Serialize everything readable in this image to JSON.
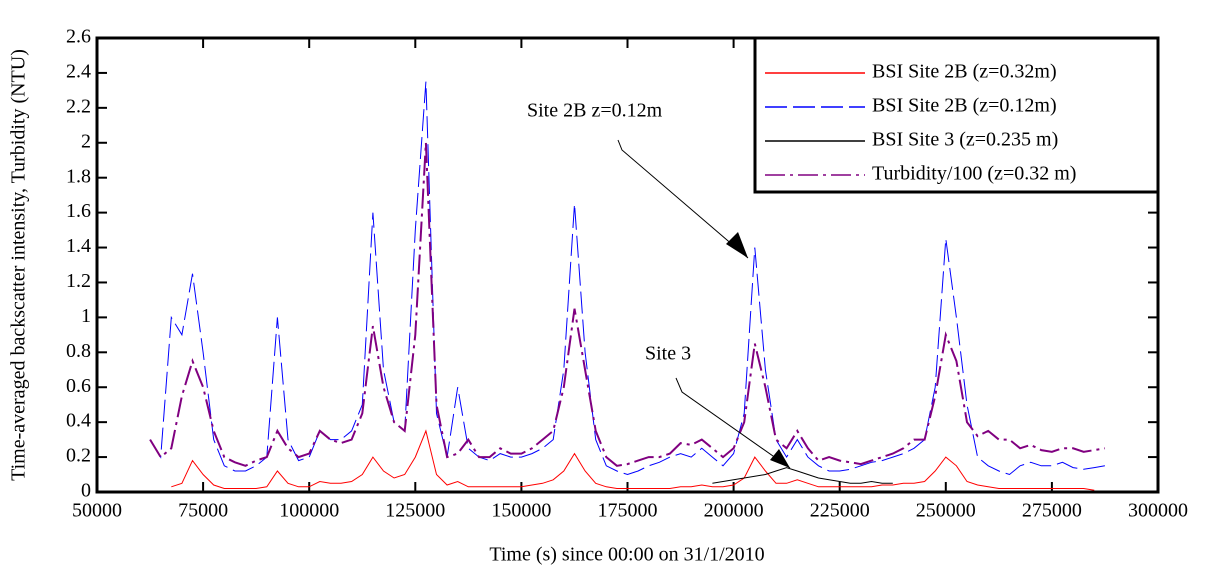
{
  "chart_data": {
    "type": "line",
    "xlabel": "Time (s) since 00:00 on 31/1/2010",
    "ylabel": "Time-averaged backscatter intensity, Turbidity (NTU)",
    "xlim": [
      50000,
      300000
    ],
    "ylim": [
      0,
      2.6
    ],
    "xticks": [
      50000,
      75000,
      100000,
      125000,
      150000,
      175000,
      200000,
      225000,
      250000,
      275000,
      300000
    ],
    "yticks": [
      0,
      0.2,
      0.4,
      0.6,
      0.8,
      1,
      1.2,
      1.4,
      1.6,
      1.8,
      2,
      2.2,
      2.4,
      2.6
    ],
    "legend": "upper right",
    "x": [
      62500,
      65000,
      67500,
      70000,
      72500,
      75000,
      77500,
      80000,
      82500,
      85000,
      87500,
      90000,
      92500,
      95000,
      97500,
      100000,
      102500,
      105000,
      107500,
      110000,
      112500,
      115000,
      117500,
      120000,
      122500,
      125000,
      127500,
      130000,
      132500,
      135000,
      137500,
      140000,
      142500,
      145000,
      147500,
      150000,
      152500,
      155000,
      157500,
      160000,
      162500,
      165000,
      167500,
      170000,
      172500,
      175000,
      177500,
      180000,
      182500,
      185000,
      187500,
      190000,
      192500,
      195000,
      197500,
      200000,
      202500,
      205000,
      207500,
      210000,
      212500,
      215000,
      217500,
      220000,
      222500,
      225000,
      227500,
      230000,
      232500,
      235000,
      237500,
      240000,
      242500,
      245000,
      247500,
      250000,
      252500,
      255000,
      257500,
      260000,
      262500,
      265000,
      267500,
      270000,
      272500,
      275000,
      277500,
      280000,
      282500,
      285000,
      287500
    ],
    "series": [
      {
        "name": "BSI Site 2B (z=0.32m)",
        "color": "#ff0000",
        "linestyle": "solid",
        "values": [
          null,
          null,
          0.03,
          0.05,
          0.18,
          0.1,
          0.04,
          0.02,
          0.02,
          0.02,
          0.02,
          0.03,
          0.12,
          0.05,
          0.03,
          0.03,
          0.06,
          0.05,
          0.05,
          0.06,
          0.1,
          0.2,
          0.12,
          0.08,
          0.1,
          0.2,
          0.35,
          0.1,
          0.04,
          0.06,
          0.03,
          0.03,
          0.03,
          0.03,
          0.03,
          0.03,
          0.04,
          0.05,
          0.07,
          0.12,
          0.22,
          0.12,
          0.05,
          0.03,
          0.02,
          0.02,
          0.02,
          0.02,
          0.02,
          0.02,
          0.03,
          0.03,
          0.04,
          0.03,
          0.03,
          0.04,
          0.08,
          0.2,
          0.12,
          0.05,
          0.05,
          0.07,
          0.05,
          0.03,
          0.03,
          0.03,
          0.03,
          0.03,
          0.03,
          0.04,
          0.04,
          0.05,
          0.05,
          0.06,
          0.12,
          0.2,
          0.15,
          0.06,
          0.04,
          0.03,
          0.02,
          0.02,
          0.02,
          0.02,
          0.02,
          0.02,
          0.02,
          0.02,
          0.02,
          0.01,
          null
        ]
      },
      {
        "name": "BSI Site 2B (z=0.12m)",
        "color": "#0000ff",
        "linestyle": "dashed",
        "values": [
          0.3,
          0.2,
          1.0,
          0.9,
          1.25,
          0.8,
          0.3,
          0.15,
          0.12,
          0.12,
          0.15,
          0.2,
          1.0,
          0.3,
          0.18,
          0.2,
          0.35,
          0.3,
          0.3,
          0.35,
          0.5,
          1.6,
          0.7,
          0.4,
          0.35,
          1.5,
          2.35,
          0.45,
          0.2,
          0.6,
          0.25,
          0.2,
          0.18,
          0.22,
          0.2,
          0.2,
          0.22,
          0.25,
          0.3,
          0.7,
          1.65,
          0.8,
          0.3,
          0.15,
          0.12,
          0.1,
          0.12,
          0.15,
          0.17,
          0.2,
          0.22,
          0.2,
          0.25,
          0.2,
          0.15,
          0.22,
          0.45,
          1.4,
          0.7,
          0.3,
          0.2,
          0.3,
          0.2,
          0.15,
          0.12,
          0.12,
          0.13,
          0.15,
          0.17,
          0.18,
          0.2,
          0.22,
          0.25,
          0.3,
          0.6,
          1.45,
          1.0,
          0.5,
          0.2,
          0.15,
          0.12,
          0.1,
          0.15,
          0.17,
          0.15,
          0.15,
          0.17,
          0.14,
          0.13,
          0.14,
          0.15
        ]
      },
      {
        "name": "BSI Site 3 (z=0.235 m)",
        "color": "#000000",
        "linestyle": "solid",
        "values": [
          null,
          null,
          null,
          null,
          null,
          null,
          null,
          null,
          null,
          null,
          null,
          null,
          null,
          null,
          null,
          null,
          null,
          null,
          null,
          null,
          null,
          null,
          null,
          null,
          null,
          null,
          null,
          null,
          null,
          null,
          null,
          null,
          null,
          null,
          null,
          null,
          null,
          null,
          null,
          null,
          null,
          null,
          null,
          null,
          null,
          null,
          null,
          null,
          null,
          null,
          null,
          null,
          null,
          0.05,
          0.06,
          0.07,
          0.08,
          0.09,
          0.1,
          0.12,
          0.14,
          0.12,
          0.1,
          0.08,
          0.07,
          0.06,
          0.05,
          0.05,
          0.06,
          0.05,
          0.05,
          null,
          null,
          null,
          null,
          null,
          null,
          null,
          null,
          null,
          null,
          null,
          null,
          null,
          null,
          null,
          null,
          null,
          null,
          null,
          null
        ]
      },
      {
        "name": "Turbidity/100 (z=0.32 m)",
        "color": "#800080",
        "linestyle": "dashdot",
        "values": [
          0.3,
          0.2,
          0.25,
          0.55,
          0.75,
          0.6,
          0.35,
          0.2,
          0.17,
          0.15,
          0.18,
          0.2,
          0.35,
          0.25,
          0.2,
          0.22,
          0.35,
          0.3,
          0.28,
          0.3,
          0.45,
          0.95,
          0.6,
          0.4,
          0.35,
          0.9,
          2.0,
          0.5,
          0.2,
          0.22,
          0.3,
          0.2,
          0.2,
          0.25,
          0.22,
          0.22,
          0.25,
          0.3,
          0.35,
          0.6,
          1.05,
          0.7,
          0.35,
          0.2,
          0.15,
          0.16,
          0.18,
          0.2,
          0.2,
          0.22,
          0.28,
          0.27,
          0.3,
          0.25,
          0.2,
          0.25,
          0.4,
          0.85,
          0.6,
          0.3,
          0.25,
          0.35,
          0.25,
          0.18,
          0.2,
          0.18,
          0.17,
          0.16,
          0.18,
          0.2,
          0.22,
          0.25,
          0.3,
          0.3,
          0.55,
          0.9,
          0.75,
          0.4,
          0.32,
          0.35,
          0.3,
          0.3,
          0.25,
          0.27,
          0.24,
          0.23,
          0.25,
          0.25,
          0.23,
          0.24,
          0.25
        ]
      }
    ],
    "annotations": [
      "Site 2B z=0.12m",
      "Site 3"
    ]
  }
}
